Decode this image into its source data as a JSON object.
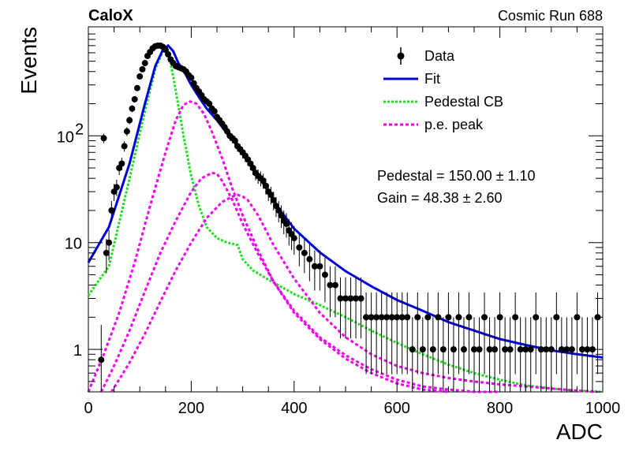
{
  "header": {
    "experiment": "CaloX",
    "run_label": "Cosmic Run 688"
  },
  "fit_params": {
    "pedestal": "Pedestal = 150.00 ± 1.10",
    "gain": "Gain = 48.38 ± 2.60"
  },
  "colors": {
    "data": "#000000",
    "fit": "#0000dd",
    "pedestal": "#22dd22",
    "pe": "#ee00ee"
  },
  "chart_data": {
    "type": "scatter",
    "xlabel": "ADC",
    "ylabel": "Events",
    "xlim": [
      0,
      1000
    ],
    "ylim": [
      0.4,
      1050
    ],
    "y_scale": "log",
    "x_ticks": [
      0,
      200,
      400,
      600,
      800,
      1000
    ],
    "y_ticks": [
      {
        "value": 1,
        "label": "1"
      },
      {
        "value": 10,
        "label": "10"
      },
      {
        "value": 100,
        "label": "10",
        "sup": "2"
      }
    ],
    "legend_position": "top-right",
    "legend": [
      "Data",
      "Fit",
      "Pedestal CB",
      "p.e. peak"
    ],
    "series": [
      {
        "name": "Data",
        "kind": "points",
        "x": [
          25,
          30,
          35,
          40,
          45,
          50,
          55,
          60,
          65,
          70,
          75,
          80,
          85,
          90,
          95,
          100,
          105,
          110,
          115,
          120,
          125,
          130,
          135,
          140,
          145,
          150,
          155,
          160,
          165,
          170,
          175,
          180,
          185,
          190,
          195,
          200,
          205,
          210,
          215,
          220,
          225,
          230,
          235,
          240,
          245,
          250,
          255,
          260,
          265,
          270,
          275,
          280,
          285,
          290,
          295,
          300,
          305,
          310,
          315,
          320,
          325,
          330,
          335,
          340,
          345,
          350,
          355,
          360,
          365,
          370,
          375,
          380,
          385,
          390,
          395,
          400,
          410,
          420,
          430,
          440,
          450,
          460,
          470,
          480,
          490,
          500,
          510,
          520,
          530,
          540,
          550,
          560,
          570,
          580,
          590,
          600,
          610,
          620,
          630,
          640,
          650,
          660,
          670,
          680,
          690,
          700,
          710,
          720,
          730,
          740,
          750,
          760,
          770,
          780,
          790,
          800,
          810,
          820,
          830,
          840,
          850,
          860,
          870,
          880,
          890,
          900,
          910,
          920,
          930,
          940,
          950,
          960,
          970,
          980,
          990
        ],
        "y": [
          0.8,
          95,
          8,
          10,
          20,
          30,
          33,
          50,
          55,
          80,
          110,
          140,
          180,
          220,
          280,
          360,
          420,
          480,
          560,
          610,
          660,
          690,
          700,
          700,
          680,
          640,
          580,
          520,
          480,
          450,
          440,
          430,
          420,
          400,
          370,
          350,
          310,
          280,
          260,
          240,
          220,
          210,
          200,
          180,
          170,
          150,
          140,
          130,
          120,
          110,
          100,
          95,
          90,
          80,
          75,
          70,
          65,
          60,
          55,
          50,
          45,
          42,
          40,
          38,
          34,
          30,
          28,
          25,
          22,
          20,
          18,
          16,
          15,
          13,
          12,
          11,
          9,
          8,
          7,
          6,
          6,
          5,
          4,
          4,
          3,
          3,
          3,
          3,
          3,
          2,
          2,
          2,
          2,
          2,
          2,
          2,
          2,
          2,
          1,
          2,
          1,
          2,
          1,
          2,
          1,
          2,
          1,
          2,
          1,
          2,
          1,
          1,
          2,
          1,
          1,
          2,
          1,
          1,
          2,
          1,
          1,
          1,
          2,
          1,
          1,
          1,
          2,
          1,
          1,
          1,
          2,
          1,
          1,
          1,
          2
        ]
      },
      {
        "name": "Fit",
        "kind": "line",
        "x": [
          0,
          40,
          80,
          110,
          130,
          145,
          155,
          165,
          175,
          185,
          200,
          215,
          230,
          250,
          270,
          290,
          310,
          330,
          350,
          370,
          400,
          450,
          500,
          550,
          600,
          650,
          700,
          750,
          800,
          850,
          900,
          950,
          1000
        ],
        "y": [
          6.5,
          14,
          55,
          200,
          450,
          640,
          700,
          620,
          480,
          410,
          300,
          230,
          180,
          140,
          105,
          80,
          58,
          42,
          30,
          21,
          13.5,
          8.1,
          5.4,
          3.9,
          2.9,
          2.3,
          1.8,
          1.5,
          1.25,
          1.1,
          0.98,
          0.9,
          0.84
        ]
      },
      {
        "name": "Pedestal CB",
        "kind": "line",
        "x": [
          0,
          40,
          80,
          110,
          130,
          145,
          150,
          155,
          165,
          175,
          185,
          200,
          215,
          230,
          250,
          270,
          290,
          300,
          320,
          350,
          400,
          450,
          500,
          550,
          600,
          650,
          700,
          750,
          800,
          850,
          900,
          950,
          1000
        ],
        "y": [
          3.2,
          6,
          40,
          170,
          420,
          620,
          660,
          620,
          360,
          190,
          100,
          42,
          22,
          14,
          11,
          10,
          9.5,
          7,
          5.5,
          4.5,
          3.3,
          2.6,
          2.0,
          1.5,
          1.15,
          0.9,
          0.72,
          0.6,
          0.52,
          0.46,
          0.43,
          0.41,
          0.4
        ]
      },
      {
        "name": "p.e. peak",
        "kind": "line",
        "x": [
          0,
          30,
          60,
          90,
          120,
          150,
          170,
          185,
          198,
          210,
          225,
          240,
          260,
          280,
          300,
          330,
          360,
          400,
          450,
          500,
          550,
          600,
          650,
          700
        ],
        "y": [
          0.4,
          0.9,
          2.2,
          6.5,
          22,
          70,
          140,
          195,
          210,
          200,
          160,
          110,
          62,
          32,
          18,
          8.5,
          4.3,
          2.2,
          1.25,
          0.82,
          0.6,
          0.48,
          0.42,
          0.4
        ]
      },
      {
        "name": "p.e. peak",
        "kind": "line",
        "x": [
          25,
          50,
          80,
          110,
          140,
          170,
          200,
          220,
          240,
          250,
          260,
          280,
          300,
          330,
          360,
          400,
          450,
          500,
          550,
          600,
          650,
          700,
          750,
          800
        ],
        "y": [
          0.4,
          0.7,
          1.5,
          3.5,
          8,
          16,
          30,
          40,
          45,
          44,
          38,
          25,
          15,
          7.8,
          4.3,
          2.3,
          1.3,
          0.88,
          0.65,
          0.52,
          0.45,
          0.42,
          0.4,
          0.4
        ]
      },
      {
        "name": "p.e. peak",
        "kind": "line",
        "x": [
          45,
          80,
          110,
          140,
          170,
          200,
          230,
          260,
          280,
          290,
          300,
          310,
          330,
          360,
          400,
          450,
          500,
          550,
          600,
          650,
          700,
          750,
          800,
          850,
          900,
          950,
          990
        ],
        "y": [
          0.4,
          0.75,
          1.4,
          2.8,
          5.5,
          10,
          17,
          24,
          27,
          28,
          27,
          25,
          18,
          9.5,
          4.6,
          2.2,
          1.3,
          0.9,
          0.7,
          0.6,
          0.54,
          0.5,
          0.47,
          0.45,
          0.43,
          0.41,
          0.4
        ]
      }
    ]
  }
}
